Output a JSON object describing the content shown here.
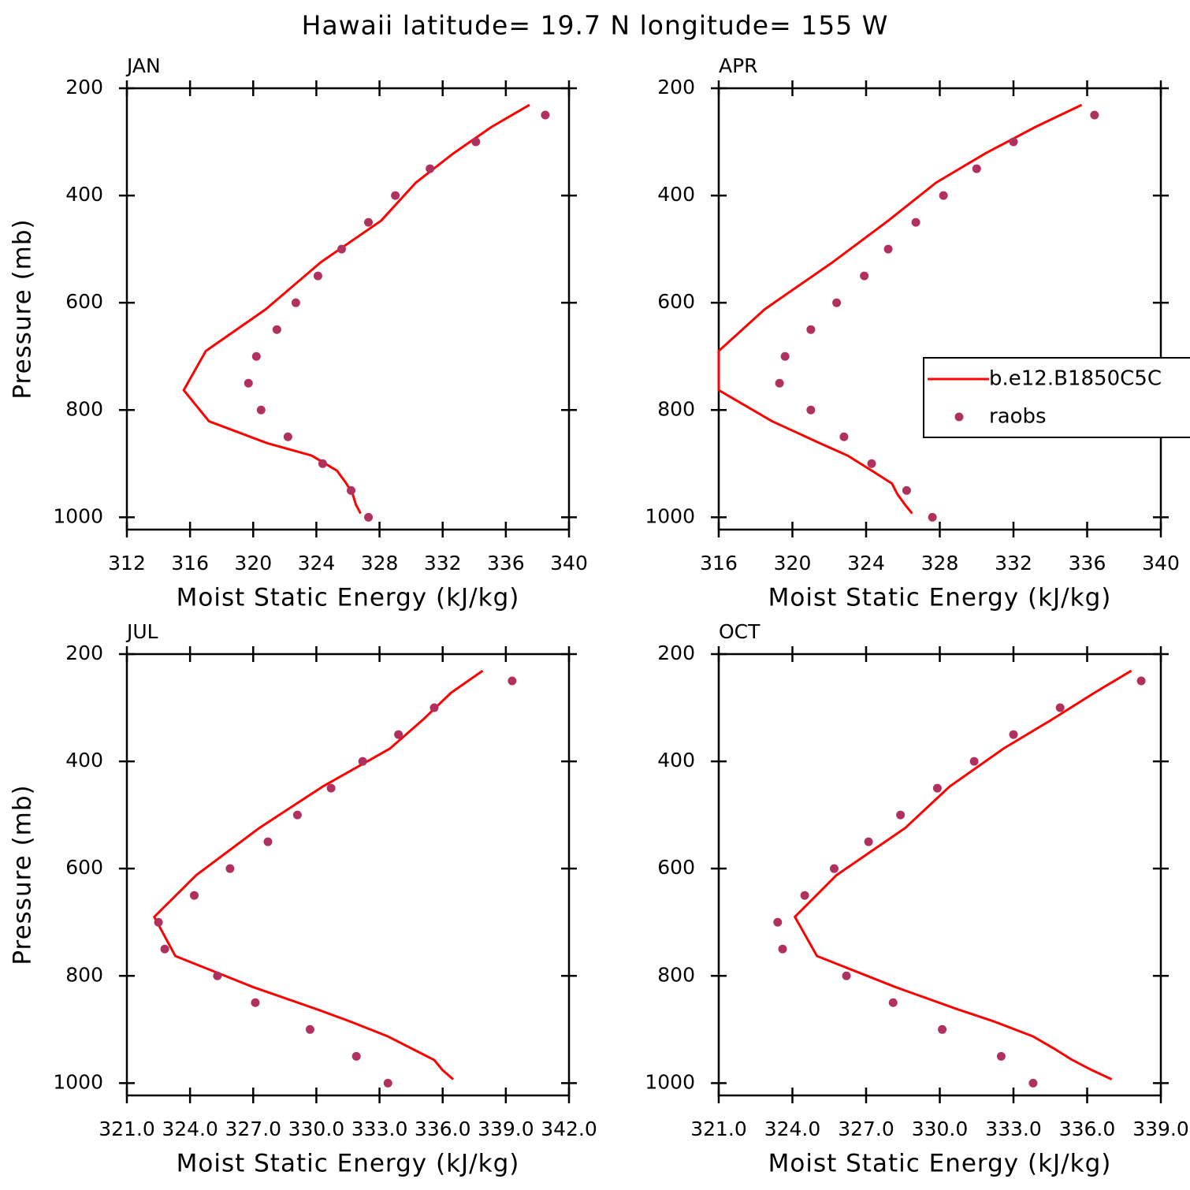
{
  "title": "Hawaii  latitude= 19.7 N longitude= 155 W",
  "chart_data": [
    {
      "type": "line",
      "title": "JAN",
      "xlabel": "Moist Static Energy (kJ/kg)",
      "ylabel": "Pressure (mb)",
      "xlim": [
        312,
        340
      ],
      "xticks": [
        312,
        316,
        320,
        324,
        328,
        332,
        336,
        340
      ],
      "ylim": [
        1023,
        200
      ],
      "yticks": [
        200,
        400,
        600,
        800,
        1000
      ],
      "series": [
        {
          "type": "line",
          "color": "#ff0000",
          "x": [
            337.5,
            335.1,
            332.7,
            330.3,
            328.1,
            324.3,
            320.8,
            317.0,
            315.6,
            317.2,
            320.9,
            323.7,
            325.3,
            325.9,
            326.3,
            326.5,
            326.8
          ],
          "y": [
            231,
            272,
            321,
            376,
            447,
            524,
            612,
            690,
            763,
            821,
            862,
            885,
            913,
            937,
            957,
            976,
            993
          ]
        },
        {
          "type": "scatter",
          "color": "#b03060",
          "x": [
            338.5,
            334.1,
            331.2,
            329.0,
            327.3,
            325.6,
            324.1,
            322.7,
            321.5,
            320.2,
            319.7,
            320.5,
            322.2,
            324.4,
            326.2,
            327.3
          ],
          "y": [
            250,
            300,
            350,
            400,
            450,
            500,
            550,
            600,
            650,
            700,
            750,
            800,
            850,
            900,
            950,
            1000
          ]
        }
      ]
    },
    {
      "type": "line",
      "title": "APR",
      "xlabel": "Moist Static Energy (kJ/kg)",
      "xlim": [
        316,
        340
      ],
      "xticks": [
        316,
        320,
        324,
        328,
        332,
        336,
        340
      ],
      "ylim": [
        1023,
        200
      ],
      "yticks": [
        200,
        400,
        600,
        800,
        1000
      ],
      "legend": true,
      "legend_position": "right",
      "series": [
        {
          "name": "b.e12.B1850C5C",
          "type": "line",
          "color": "#ff0000",
          "x": [
            335.7,
            333.2,
            330.5,
            327.8,
            325.2,
            322.2,
            318.5,
            316.0,
            316.0,
            318.9,
            321.5,
            323.0,
            324.3,
            325.4,
            325.7,
            326.1,
            326.5
          ],
          "y": [
            231,
            272,
            321,
            376,
            447,
            524,
            612,
            690,
            763,
            821,
            862,
            885,
            913,
            937,
            957,
            976,
            993
          ]
        },
        {
          "name": "raobs",
          "type": "scatter",
          "color": "#b03060",
          "x": [
            336.4,
            332.0,
            330.0,
            328.2,
            326.7,
            325.2,
            323.9,
            322.4,
            321.0,
            319.6,
            319.3,
            321.0,
            322.8,
            324.3,
            326.2,
            327.6
          ],
          "y": [
            250,
            300,
            350,
            400,
            450,
            500,
            550,
            600,
            650,
            700,
            750,
            800,
            850,
            900,
            950,
            1000
          ]
        }
      ]
    },
    {
      "type": "line",
      "title": "JUL",
      "xlabel": "Moist Static Energy (kJ/kg)",
      "ylabel": "Pressure (mb)",
      "xlim": [
        321,
        342
      ],
      "xticks": [
        {
          "value": 321,
          "label": "321.0"
        },
        {
          "value": 324,
          "label": "324.0"
        },
        {
          "value": 327,
          "label": "327.0"
        },
        {
          "value": 330,
          "label": "330.0"
        },
        {
          "value": 333,
          "label": "333.0"
        },
        {
          "value": 336,
          "label": "336.0"
        },
        {
          "value": 339,
          "label": "339.0"
        },
        {
          "value": 342,
          "label": "342.0"
        }
      ],
      "ylim": [
        1023,
        200
      ],
      "yticks": [
        200,
        400,
        600,
        800,
        1000
      ],
      "series": [
        {
          "type": "line",
          "color": "#ff0000",
          "x": [
            337.9,
            336.4,
            335.1,
            333.5,
            330.3,
            327.3,
            324.3,
            322.3,
            323.3,
            327.0,
            330.0,
            331.6,
            333.4,
            334.6,
            335.6,
            336.0,
            336.5
          ],
          "y": [
            231,
            272,
            321,
            376,
            447,
            524,
            612,
            690,
            763,
            821,
            862,
            885,
            913,
            937,
            957,
            976,
            993
          ]
        },
        {
          "type": "scatter",
          "color": "#b03060",
          "x": [
            339.3,
            335.6,
            333.9,
            332.2,
            330.7,
            329.1,
            327.7,
            325.9,
            324.2,
            322.5,
            322.8,
            325.3,
            327.1,
            329.7,
            331.9,
            333.4
          ],
          "y": [
            250,
            300,
            350,
            400,
            450,
            500,
            550,
            600,
            650,
            700,
            750,
            800,
            850,
            900,
            950,
            1000
          ]
        }
      ]
    },
    {
      "type": "line",
      "title": "OCT",
      "xlabel": "Moist Static Energy (kJ/kg)",
      "xlim": [
        321,
        339
      ],
      "xticks": [
        {
          "value": 321,
          "label": "321.0"
        },
        {
          "value": 324,
          "label": "324.0"
        },
        {
          "value": 327,
          "label": "327.0"
        },
        {
          "value": 330,
          "label": "330.0"
        },
        {
          "value": 333,
          "label": "333.0"
        },
        {
          "value": 336,
          "label": "336.0"
        },
        {
          "value": 339,
          "label": "339.0"
        }
      ],
      "ylim": [
        1023,
        200
      ],
      "yticks": [
        200,
        400,
        600,
        800,
        1000
      ],
      "series": [
        {
          "type": "line",
          "color": "#ff0000",
          "x": [
            337.8,
            336.3,
            334.6,
            332.6,
            330.4,
            328.6,
            325.8,
            324.1,
            325.0,
            328.2,
            330.7,
            332.2,
            333.8,
            334.7,
            335.4,
            336.2,
            337.0
          ],
          "y": [
            231,
            272,
            321,
            376,
            447,
            524,
            612,
            690,
            763,
            821,
            862,
            885,
            913,
            937,
            957,
            976,
            993
          ]
        },
        {
          "type": "scatter",
          "color": "#b03060",
          "x": [
            338.2,
            334.9,
            333.0,
            331.4,
            329.9,
            328.4,
            327.1,
            325.7,
            324.5,
            323.4,
            323.6,
            326.2,
            328.1,
            330.1,
            332.5,
            333.8
          ],
          "y": [
            250,
            300,
            350,
            400,
            450,
            500,
            550,
            600,
            650,
            700,
            750,
            800,
            850,
            900,
            950,
            1000
          ]
        }
      ]
    }
  ]
}
